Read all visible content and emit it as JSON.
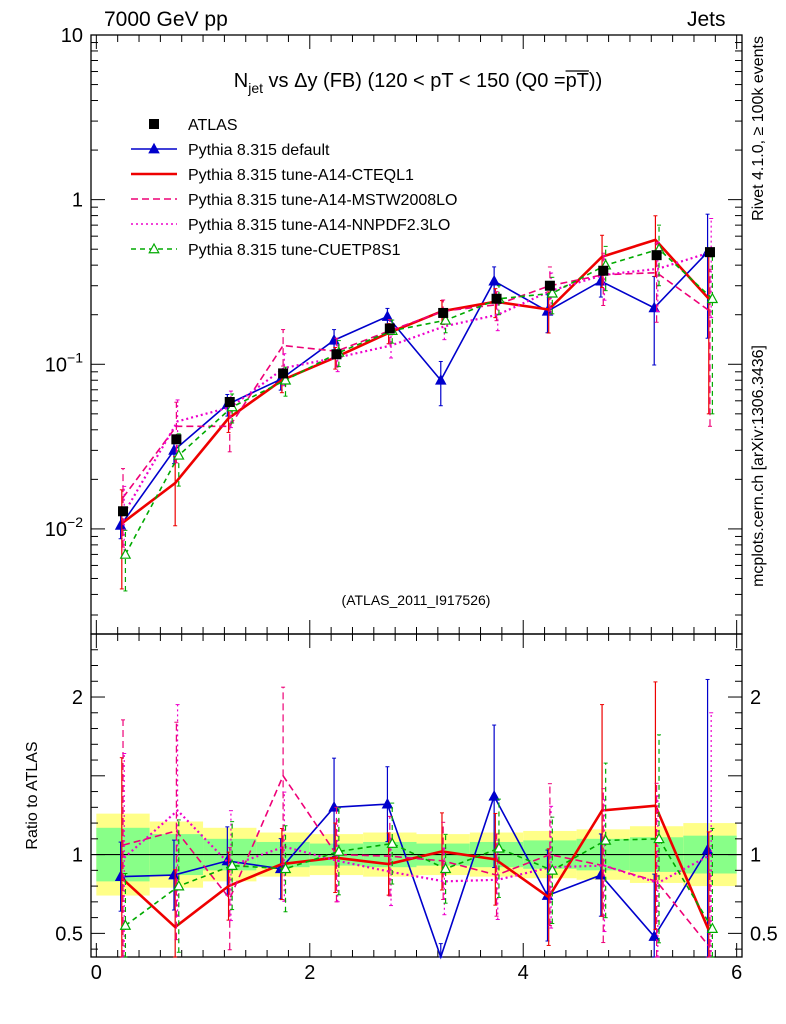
{
  "header": {
    "left": "7000 GeV pp",
    "right": "Jets",
    "side_top": "Rivet 4.1.0, ≥ 100k events",
    "side_bottom": "mcplots.cern.ch [arXiv:1306.3436]",
    "watermark": "(ATLAS_2011_I917526)"
  },
  "chart_data": {
    "type": "line",
    "title": {
      "n": "N",
      "sub": "jet",
      "mid": " vs Δy (FB) (120 < pT < 150 (Q0 =",
      "over": "pT",
      "end": "))"
    },
    "xlabel": "",
    "ylabel_ratio": "Ratio to ATLAS",
    "xlim": [
      -0.05,
      6.05
    ],
    "ylim_main": [
      0.0023,
      10
    ],
    "ylim_ratio": [
      0.35,
      2.4
    ],
    "x_ticks": [
      0,
      2,
      4,
      6
    ],
    "y_ticks_main": [
      {
        "v": 0.01,
        "b": "10",
        "e": "−2"
      },
      {
        "v": 0.1,
        "b": "10",
        "e": "−1"
      },
      {
        "v": 1,
        "b": "1",
        "e": ""
      },
      {
        "v": 10,
        "b": "10",
        "e": ""
      }
    ],
    "y_ticks_ratio": [
      0.5,
      1,
      2
    ],
    "x": [
      0.25,
      0.75,
      1.25,
      1.75,
      2.25,
      2.75,
      3.25,
      3.75,
      4.25,
      4.75,
      5.25,
      5.75
    ],
    "data": {
      "name": "ATLAS",
      "values": [
        0.0128,
        0.035,
        0.059,
        0.088,
        0.115,
        0.165,
        0.205,
        0.25,
        0.3,
        0.37,
        0.46,
        0.48
      ],
      "band_stat": [
        0.17,
        0.13,
        0.1,
        0.08,
        0.07,
        0.08,
        0.07,
        0.08,
        0.09,
        0.1,
        0.11,
        0.12
      ],
      "band_total": [
        0.26,
        0.21,
        0.17,
        0.14,
        0.13,
        0.14,
        0.13,
        0.14,
        0.15,
        0.16,
        0.18,
        0.2
      ]
    },
    "series": [
      {
        "name": "Pythia 8.315 default",
        "color": "#0000cc",
        "dash": "",
        "marker": "tri-filled",
        "values": [
          0.0105,
          0.03,
          0.057,
          0.081,
          0.14,
          0.195,
          0.08,
          0.32,
          0.21,
          0.32,
          0.22,
          0.48
        ],
        "ratio": [
          0.86,
          0.87,
          0.96,
          0.91,
          1.3,
          1.32,
          0.3,
          1.37,
          0.74,
          0.87,
          0.48,
          1.03
        ],
        "err": [
          0.17,
          0.17,
          0.15,
          0.14,
          0.16,
          0.12,
          0.3,
          0.22,
          0.26,
          0.2,
          0.55,
          0.7
        ]
      },
      {
        "name": "Pythia 8.315 tune-A14-CTEQL1",
        "color": "#ee0000",
        "dash": "",
        "marker": "none",
        "values": [
          0.0108,
          0.019,
          0.047,
          0.08,
          0.11,
          0.155,
          0.21,
          0.24,
          0.215,
          0.45,
          0.57,
          0.25
        ],
        "ratio": [
          0.85,
          0.54,
          0.8,
          0.94,
          0.98,
          0.94,
          1.02,
          0.97,
          0.73,
          1.28,
          1.31,
          0.52
        ],
        "err": [
          0.6,
          0.45,
          0.18,
          0.16,
          0.15,
          0.14,
          0.16,
          0.2,
          0.28,
          0.35,
          0.4,
          0.8
        ]
      },
      {
        "name": "Pythia 8.315 tune-A14-MSTW2008LO",
        "color": "#ee0077",
        "dash": "7,4",
        "marker": "none",
        "values": [
          0.0155,
          0.042,
          0.042,
          0.13,
          0.12,
          0.16,
          0.21,
          0.23,
          0.3,
          0.35,
          0.36,
          0.21
        ],
        "ratio": [
          1.06,
          1.15,
          0.72,
          1.5,
          1.0,
          0.99,
          0.96,
          0.87,
          1.0,
          0.93,
          0.83,
          0.41
        ],
        "err": [
          0.5,
          0.4,
          0.3,
          0.25,
          0.2,
          0.17,
          0.17,
          0.2,
          0.3,
          0.35,
          0.5,
          0.8
        ]
      },
      {
        "name": "Pythia 8.315 tune-A14-NNPDF2.3LO",
        "color": "#ee00cc",
        "dash": "2,3",
        "marker": "none",
        "values": [
          0.0125,
          0.045,
          0.055,
          0.095,
          0.11,
          0.13,
          0.17,
          0.2,
          0.28,
          0.35,
          0.38,
          0.48
        ],
        "ratio": [
          0.98,
          1.28,
          0.93,
          1.05,
          0.96,
          0.89,
          0.83,
          0.84,
          0.92,
          0.93,
          0.82,
          1.0
        ],
        "err": [
          0.45,
          0.35,
          0.25,
          0.22,
          0.18,
          0.16,
          0.17,
          0.2,
          0.28,
          0.3,
          0.45,
          0.6
        ]
      },
      {
        "name": "Pythia 8.315 tune-CUETP8S1",
        "color": "#00aa00",
        "dash": "5,4",
        "marker": "tri-open",
        "values": [
          0.007,
          0.028,
          0.055,
          0.08,
          0.118,
          0.16,
          0.185,
          0.25,
          0.27,
          0.4,
          0.5,
          0.25
        ],
        "ratio": [
          0.55,
          0.8,
          0.93,
          0.91,
          1.02,
          1.07,
          0.91,
          1.04,
          0.9,
          1.09,
          1.1,
          0.53
        ],
        "err": [
          0.4,
          0.35,
          0.2,
          0.2,
          0.18,
          0.16,
          0.16,
          0.2,
          0.25,
          0.3,
          0.4,
          0.8
        ]
      }
    ],
    "legend": {
      "position": "top-left",
      "data_label": "ATLAS"
    }
  }
}
